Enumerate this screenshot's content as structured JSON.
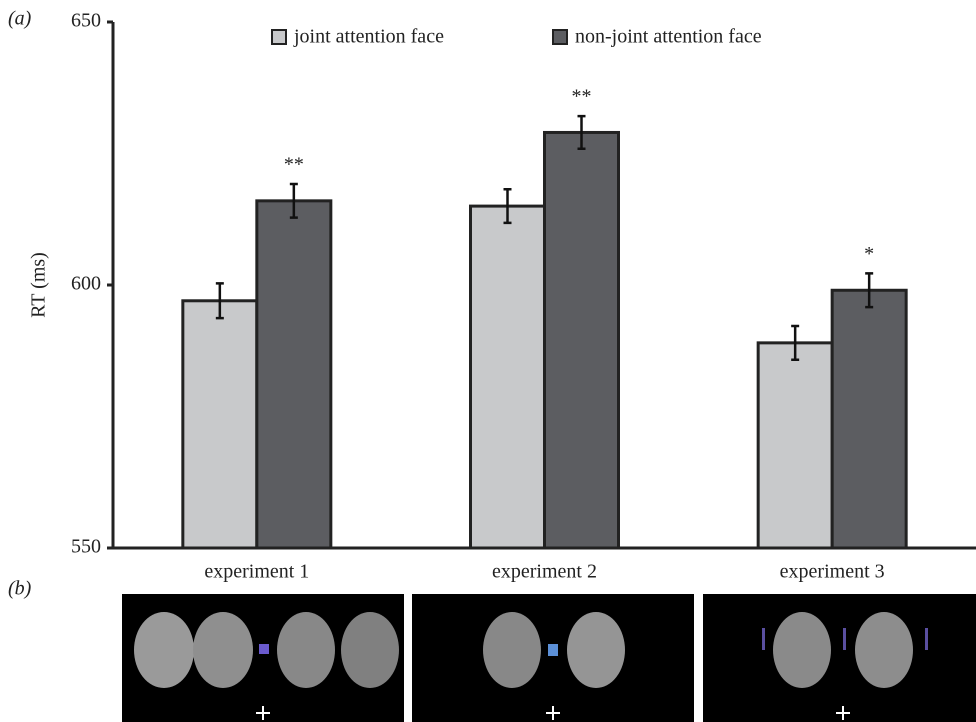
{
  "chart_data": {
    "type": "bar",
    "panel_a_label": "(a)",
    "panel_b_label": "(b)",
    "ylabel": "RT (ms)",
    "categories": [
      "experiment 1",
      "experiment 2",
      "experiment 3"
    ],
    "series": [
      {
        "name": "joint attention face",
        "color": "#c8c9cb",
        "values": [
          597,
          615,
          589
        ],
        "errors": [
          3.3,
          3.2,
          3.2
        ]
      },
      {
        "name": "non-joint attention face",
        "color": "#5c5d61",
        "values": [
          616,
          629,
          599
        ],
        "errors": [
          3.2,
          3.1,
          3.2
        ]
      }
    ],
    "significance": [
      "**",
      "**",
      "*"
    ],
    "ylim": [
      550,
      650
    ],
    "yticks": [
      550,
      600,
      650
    ]
  }
}
